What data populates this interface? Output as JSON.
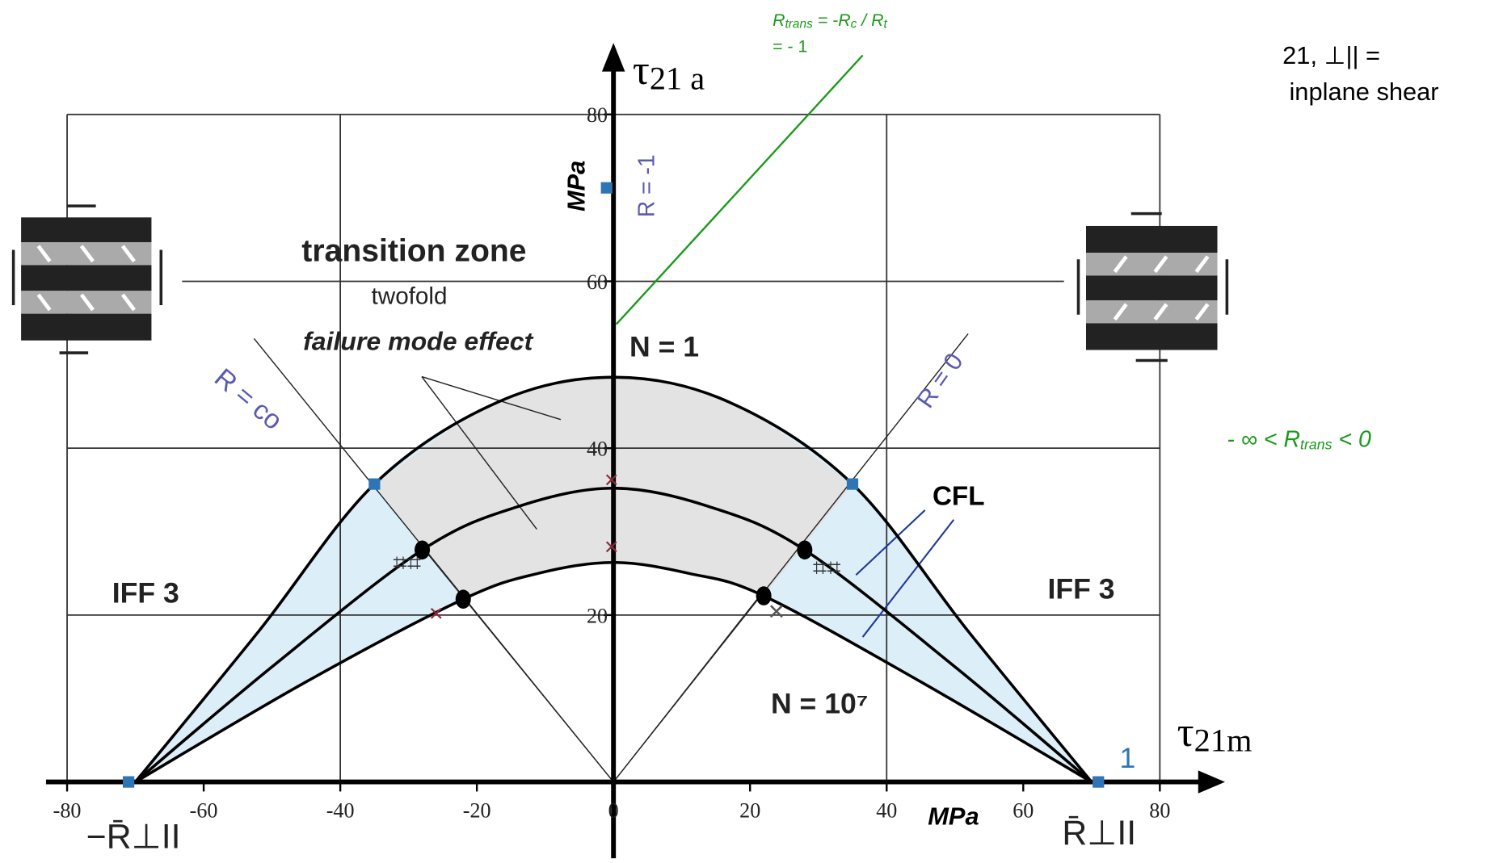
{
  "chart_data": {
    "type": "line",
    "xlim": [
      -80,
      80
    ],
    "ylim": [
      0,
      80
    ],
    "xticks": [
      -80,
      -60,
      -40,
      -20,
      0,
      20,
      40,
      60,
      80
    ],
    "yticks": [
      20,
      40,
      60,
      80
    ],
    "xgrid": [
      -80,
      -40,
      40,
      80
    ],
    "ygrid": [
      20,
      40,
      60,
      80
    ],
    "y_axis_label": [
      "τ",
      "21 a"
    ],
    "x_axis_label": [
      "τ",
      "21m"
    ],
    "y_unit": "MPa",
    "x_unit": "MPa",
    "x": [
      -70,
      -52,
      -35,
      -17,
      0,
      17,
      35,
      52,
      70
    ],
    "series": [
      {
        "name": "N = 1",
        "color": "#000000",
        "x": [
          -70,
          -52,
          -35,
          -17,
          0,
          17,
          35,
          52,
          70
        ],
        "values": [
          0,
          18,
          35.7,
          45.5,
          48.5,
          45.5,
          35.7,
          18,
          0
        ]
      },
      {
        "color": "#000000",
        "x": [
          -70,
          -50,
          -28,
          -14,
          0,
          14,
          28,
          50,
          70
        ],
        "values": [
          0,
          13.8,
          27.8,
          33,
          35.2,
          33,
          27.8,
          13.8,
          0
        ]
      },
      {
        "name": "N = 10⁷",
        "color": "#000000",
        "x": [
          -70,
          -45,
          -22,
          -11,
          0,
          11,
          22,
          45,
          70
        ],
        "values": [
          0,
          12,
          21.9,
          25,
          26.3,
          25,
          22.3,
          12,
          0
        ]
      }
    ],
    "markers": [
      {
        "shape": "circle",
        "color": "#000000",
        "x": [
          -28,
          -22,
          22,
          28
        ],
        "values": [
          27.8,
          21.9,
          22.3,
          27.8
        ]
      },
      {
        "shape": "square",
        "color": "#2e75b6",
        "x": [
          -71,
          -35,
          35,
          71,
          -1
        ],
        "values": [
          0,
          35.7,
          35.7,
          0,
          71.2
        ]
      }
    ],
    "fill_colors": {
      "outer": "#dceef8",
      "middle": "#e3e3e3"
    },
    "annotations": {
      "transition": "transition zone",
      "twofold": "twofold",
      "effect": "failure mode effect",
      "r_co": "R = co",
      "r_0": "R = 0",
      "r_m1": "R = -1",
      "cfl": "CFL",
      "iff_left": "IFF 3",
      "iff_right": "IFF 3",
      "one": "1",
      "r_left": "−R̄⊥II",
      "r_right": "R̄⊥II",
      "rtrans": [
        "R",
        "trans",
        " = -R",
        "c",
        " / R",
        "t"
      ],
      "rtrans2": "= - 1",
      "shear1": "21, ⊥|| =",
      "shear2": "inplane shear",
      "range": [
        "- ∞ < ",
        "R",
        "trans",
        " < 0"
      ]
    }
  }
}
